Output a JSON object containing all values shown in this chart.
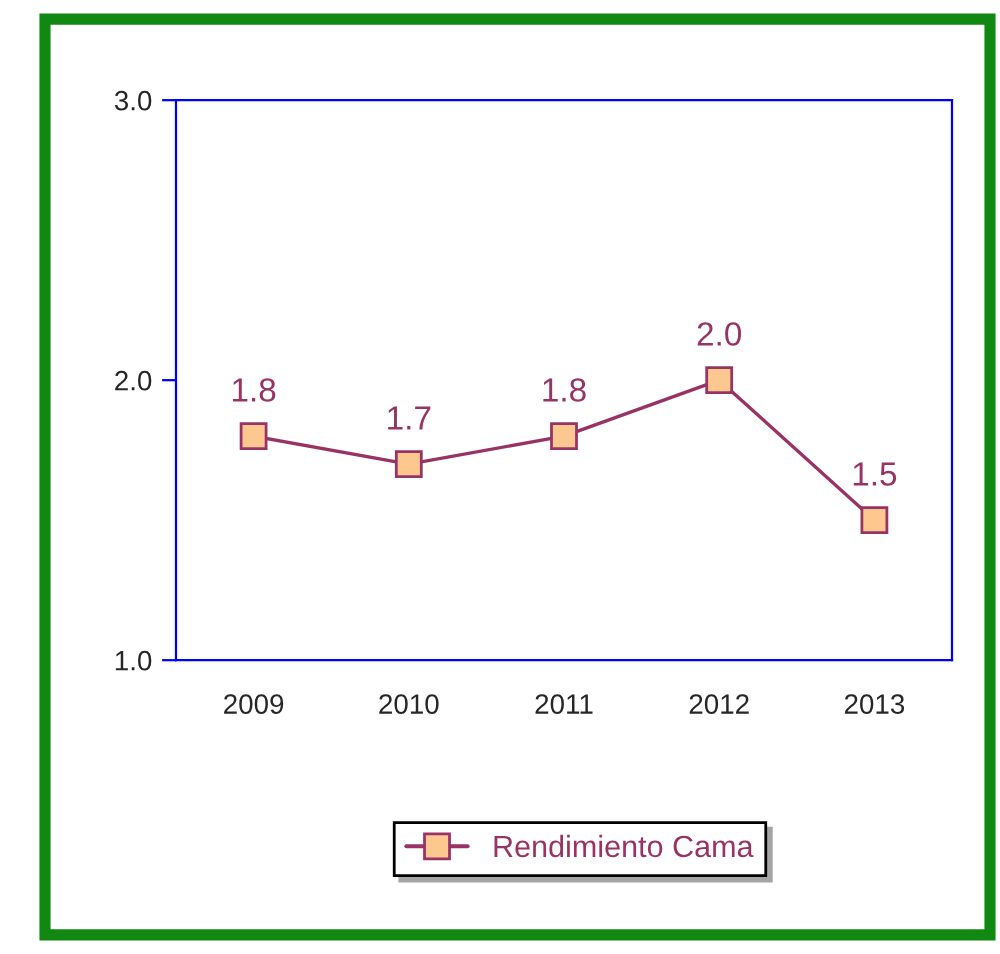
{
  "chart_data": {
    "type": "line",
    "categories": [
      "2009",
      "2010",
      "2011",
      "2012",
      "2013"
    ],
    "series": [
      {
        "name": "Rendimiento Cama",
        "color": "#993366",
        "values": [
          1.8,
          1.7,
          1.8,
          2.0,
          1.5
        ],
        "value_labels": [
          "1.8",
          "1.7",
          "1.8",
          "2.0",
          "1.5"
        ]
      }
    ],
    "ylim": [
      1.0,
      3.0
    ],
    "yticks": [
      {
        "value": 1.0,
        "label": "1.0"
      },
      {
        "value": 2.0,
        "label": "2.0"
      },
      {
        "value": 3.0,
        "label": "3.0"
      }
    ],
    "grid": false,
    "legend": "bottom",
    "marker": "square",
    "line_style": "solid"
  }
}
